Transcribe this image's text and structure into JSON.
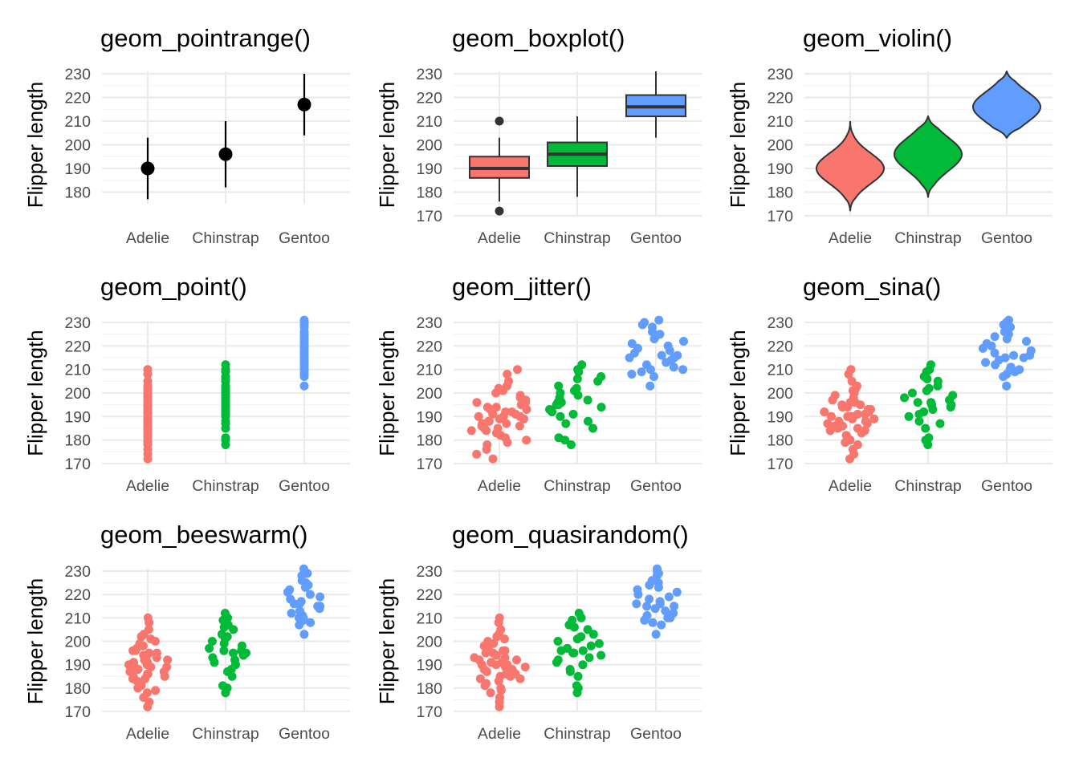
{
  "colors": {
    "Adelie": "#F8766D",
    "Chinstrap": "#00BA38",
    "Gentoo": "#619CFF",
    "ink": "#000000",
    "grid": "#ebebeb",
    "tick_text": "#4d4d4d"
  },
  "chart_data": [
    {
      "type": "pointrange",
      "title": "geom_pointrange()",
      "ylabel": "Flipper length",
      "categories": [
        "Adelie",
        "Chinstrap",
        "Gentoo"
      ],
      "ylim": [
        175,
        231
      ],
      "yticks": [
        180,
        190,
        200,
        210,
        220,
        230
      ],
      "grid": true,
      "series": [
        {
          "category": "Adelie",
          "value": 190,
          "min": 177,
          "max": 203
        },
        {
          "category": "Chinstrap",
          "value": 196,
          "min": 182,
          "max": 210
        },
        {
          "category": "Gentoo",
          "value": 217,
          "min": 204,
          "max": 230
        }
      ]
    },
    {
      "type": "boxplot",
      "title": "geom_boxplot()",
      "ylabel": "Flipper length",
      "categories": [
        "Adelie",
        "Chinstrap",
        "Gentoo"
      ],
      "ylim": [
        170,
        231
      ],
      "yticks": [
        170,
        180,
        190,
        200,
        210,
        220,
        230
      ],
      "grid": true,
      "series": [
        {
          "category": "Adelie",
          "min": 176,
          "q1": 186,
          "median": 190,
          "q3": 195,
          "max": 203,
          "outliers": [
            210,
            172
          ]
        },
        {
          "category": "Chinstrap",
          "min": 178,
          "q1": 191,
          "median": 196,
          "q3": 201,
          "max": 212,
          "outliers": []
        },
        {
          "category": "Gentoo",
          "min": 203,
          "q1": 212,
          "median": 216,
          "q3": 221,
          "max": 231,
          "outliers": []
        }
      ]
    },
    {
      "type": "violin",
      "title": "geom_violin()",
      "ylabel": "Flipper length",
      "categories": [
        "Adelie",
        "Chinstrap",
        "Gentoo"
      ],
      "ylim": [
        170,
        231
      ],
      "yticks": [
        170,
        180,
        190,
        200,
        210,
        220,
        230
      ],
      "grid": true,
      "series": [
        {
          "category": "Adelie",
          "min": 172,
          "max": 210,
          "center": 190,
          "spread": 6.5
        },
        {
          "category": "Chinstrap",
          "min": 178,
          "max": 212,
          "center": 196,
          "spread": 7
        },
        {
          "category": "Gentoo",
          "min": 203,
          "max": 231,
          "center": 216,
          "spread": 6.5
        }
      ]
    },
    {
      "type": "scatter",
      "title": "geom_point()",
      "ylabel": "Flipper length",
      "categories": [
        "Adelie",
        "Chinstrap",
        "Gentoo"
      ],
      "ylim": [
        170,
        231
      ],
      "yticks": [
        170,
        180,
        190,
        200,
        210,
        220,
        230
      ],
      "grid": true,
      "series": [
        {
          "category": "Adelie",
          "values": [
            172,
            174,
            176,
            178,
            179,
            180,
            181,
            182,
            183,
            184,
            185,
            186,
            187,
            188,
            189,
            190,
            191,
            192,
            193,
            194,
            195,
            196,
            197,
            198,
            199,
            200,
            201,
            202,
            203,
            205,
            208,
            210
          ]
        },
        {
          "category": "Chinstrap",
          "values": [
            178,
            180,
            181,
            185,
            187,
            188,
            190,
            191,
            192,
            193,
            194,
            195,
            196,
            197,
            198,
            199,
            200,
            201,
            202,
            203,
            205,
            206,
            207,
            209,
            210,
            212
          ]
        },
        {
          "category": "Gentoo",
          "values": [
            203,
            207,
            208,
            209,
            210,
            211,
            212,
            213,
            214,
            215,
            216,
            217,
            218,
            219,
            220,
            221,
            222,
            223,
            224,
            225,
            226,
            228,
            229,
            230,
            231
          ]
        }
      ]
    },
    {
      "type": "scatter",
      "title": "geom_jitter()",
      "ylabel": "Flipper length",
      "categories": [
        "Adelie",
        "Chinstrap",
        "Gentoo"
      ],
      "ylim": [
        170,
        231
      ],
      "yticks": [
        170,
        180,
        190,
        200,
        210,
        220,
        230
      ],
      "grid": true,
      "series": [
        {
          "category": "Adelie",
          "values": [
            172,
            174,
            176,
            178,
            179,
            180,
            181,
            182,
            183,
            184,
            184,
            185,
            185,
            186,
            186,
            187,
            187,
            188,
            188,
            189,
            189,
            190,
            190,
            190,
            191,
            191,
            192,
            192,
            193,
            193,
            194,
            194,
            195,
            195,
            196,
            196,
            197,
            198,
            199,
            200,
            201,
            202,
            203,
            205,
            208,
            210
          ]
        },
        {
          "category": "Chinstrap",
          "values": [
            178,
            180,
            181,
            185,
            187,
            188,
            190,
            191,
            192,
            193,
            194,
            195,
            195,
            196,
            196,
            197,
            198,
            199,
            200,
            201,
            202,
            203,
            205,
            206,
            207,
            209,
            210,
            212
          ]
        },
        {
          "category": "Gentoo",
          "values": [
            203,
            207,
            208,
            209,
            210,
            210,
            211,
            212,
            213,
            214,
            215,
            215,
            216,
            216,
            217,
            218,
            219,
            220,
            221,
            222,
            223,
            224,
            225,
            226,
            228,
            229,
            230,
            231
          ]
        }
      ]
    },
    {
      "type": "scatter",
      "title": "geom_sina()",
      "ylabel": "Flipper length",
      "categories": [
        "Adelie",
        "Chinstrap",
        "Gentoo"
      ],
      "ylim": [
        170,
        231
      ],
      "yticks": [
        170,
        180,
        190,
        200,
        210,
        220,
        230
      ],
      "grid": true,
      "series": [
        {
          "category": "Adelie",
          "values": [
            172,
            174,
            176,
            178,
            179,
            180,
            181,
            182,
            183,
            184,
            184,
            185,
            185,
            186,
            186,
            187,
            187,
            188,
            188,
            189,
            189,
            190,
            190,
            190,
            191,
            191,
            192,
            192,
            193,
            193,
            194,
            194,
            195,
            195,
            196,
            196,
            197,
            198,
            199,
            200,
            201,
            202,
            203,
            205,
            208,
            210
          ]
        },
        {
          "category": "Chinstrap",
          "values": [
            178,
            180,
            181,
            185,
            187,
            188,
            190,
            191,
            192,
            193,
            194,
            195,
            195,
            196,
            196,
            197,
            198,
            199,
            200,
            201,
            202,
            203,
            205,
            206,
            207,
            209,
            210,
            212
          ]
        },
        {
          "category": "Gentoo",
          "values": [
            203,
            207,
            208,
            209,
            210,
            210,
            211,
            212,
            213,
            214,
            215,
            215,
            216,
            216,
            217,
            218,
            219,
            220,
            221,
            222,
            223,
            224,
            225,
            226,
            228,
            229,
            230,
            231
          ]
        }
      ]
    },
    {
      "type": "scatter",
      "title": "geom_beeswarm()",
      "ylabel": "Flipper length",
      "categories": [
        "Adelie",
        "Chinstrap",
        "Gentoo"
      ],
      "ylim": [
        170,
        231
      ],
      "yticks": [
        170,
        180,
        190,
        200,
        210,
        220,
        230
      ],
      "grid": true,
      "series": [
        {
          "category": "Adelie",
          "values": [
            172,
            174,
            176,
            178,
            179,
            180,
            181,
            182,
            183,
            184,
            184,
            185,
            185,
            186,
            186,
            187,
            187,
            188,
            188,
            189,
            189,
            190,
            190,
            190,
            191,
            191,
            192,
            192,
            193,
            193,
            194,
            194,
            195,
            195,
            196,
            196,
            197,
            198,
            199,
            200,
            201,
            202,
            203,
            205,
            208,
            210
          ]
        },
        {
          "category": "Chinstrap",
          "values": [
            178,
            180,
            181,
            185,
            187,
            188,
            190,
            191,
            192,
            193,
            194,
            195,
            195,
            196,
            196,
            197,
            198,
            199,
            200,
            201,
            202,
            203,
            205,
            206,
            207,
            209,
            210,
            212
          ]
        },
        {
          "category": "Gentoo",
          "values": [
            203,
            207,
            208,
            209,
            210,
            210,
            211,
            212,
            213,
            214,
            215,
            215,
            216,
            216,
            217,
            218,
            219,
            220,
            221,
            222,
            223,
            224,
            225,
            226,
            228,
            229,
            230,
            231
          ]
        }
      ]
    },
    {
      "type": "scatter",
      "title": "geom_quasirandom()",
      "ylabel": "Flipper length",
      "categories": [
        "Adelie",
        "Chinstrap",
        "Gentoo"
      ],
      "ylim": [
        170,
        231
      ],
      "yticks": [
        170,
        180,
        190,
        200,
        210,
        220,
        230
      ],
      "grid": true,
      "series": [
        {
          "category": "Adelie",
          "values": [
            172,
            174,
            176,
            178,
            179,
            180,
            181,
            182,
            183,
            184,
            184,
            185,
            185,
            186,
            186,
            187,
            187,
            188,
            188,
            189,
            189,
            190,
            190,
            190,
            191,
            191,
            192,
            192,
            193,
            193,
            194,
            194,
            195,
            195,
            196,
            196,
            197,
            198,
            199,
            200,
            201,
            202,
            203,
            205,
            208,
            210
          ]
        },
        {
          "category": "Chinstrap",
          "values": [
            178,
            180,
            181,
            185,
            187,
            188,
            190,
            191,
            192,
            193,
            194,
            195,
            195,
            196,
            196,
            197,
            198,
            199,
            200,
            201,
            202,
            203,
            205,
            206,
            207,
            209,
            210,
            212
          ]
        },
        {
          "category": "Gentoo",
          "values": [
            203,
            207,
            208,
            209,
            210,
            210,
            211,
            212,
            213,
            214,
            215,
            215,
            216,
            216,
            217,
            218,
            219,
            220,
            221,
            222,
            223,
            224,
            225,
            226,
            228,
            229,
            230,
            231
          ]
        }
      ]
    }
  ]
}
